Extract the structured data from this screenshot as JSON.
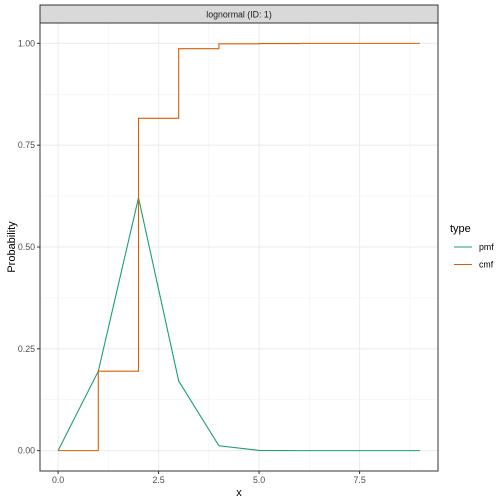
{
  "chart_data": {
    "type": "line",
    "facet_label": "lognormal (ID: 1)",
    "xlabel": "x",
    "ylabel": "Probability",
    "xlim": [
      -0.45,
      9.45
    ],
    "ylim": [
      -0.05,
      1.05
    ],
    "x_ticks": [
      0.0,
      2.5,
      5.0,
      7.5
    ],
    "x_tick_labels": [
      "0.0",
      "2.5",
      "5.0",
      "7.5"
    ],
    "y_ticks": [
      0.0,
      0.25,
      0.5,
      0.75,
      1.0
    ],
    "y_tick_labels": [
      "0.00",
      "0.25",
      "0.50",
      "0.75",
      "1.00"
    ],
    "grid": true,
    "legend": {
      "title": "type",
      "placement": "right"
    },
    "series": [
      {
        "name": "pmf",
        "color": "#1b9e77",
        "step": false,
        "x": [
          0,
          1,
          2,
          3,
          4,
          5,
          6,
          7,
          8,
          9
        ],
        "values": [
          0.0,
          0.195,
          0.621,
          0.171,
          0.012,
          0.0005,
          0.0,
          0.0,
          0.0,
          0.0
        ]
      },
      {
        "name": "cmf",
        "color": "#d95f02",
        "step": true,
        "x": [
          0,
          1,
          2,
          3,
          4,
          5,
          6,
          7,
          8,
          9
        ],
        "values": [
          0.0,
          0.195,
          0.816,
          0.987,
          0.999,
          0.9995,
          1.0,
          1.0,
          1.0,
          1.0
        ]
      }
    ]
  }
}
